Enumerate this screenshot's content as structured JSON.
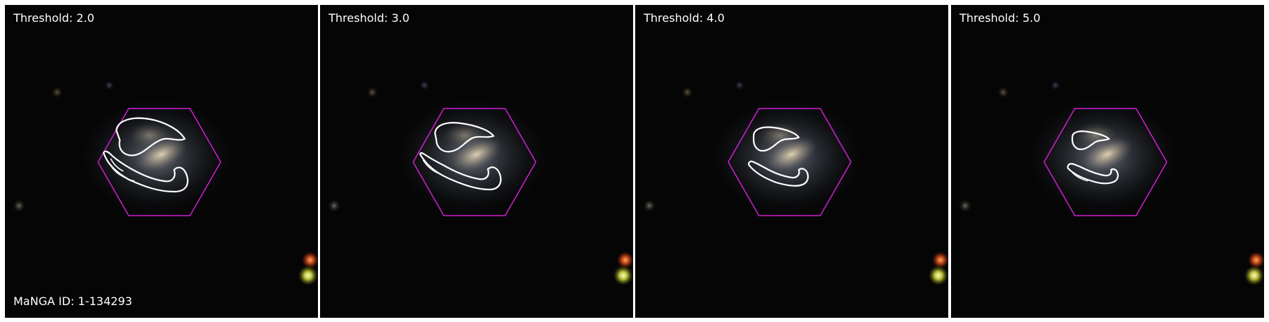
{
  "galaxy_id_text": "MaNGA ID: 1-134293",
  "colors": {
    "hexagon": "#d11fd1",
    "contour": "#ffffff",
    "background": "#050505"
  },
  "panels": [
    {
      "label": "Threshold: 2.0",
      "threshold": 2.0
    },
    {
      "label": "Threshold: 3.0",
      "threshold": 3.0
    },
    {
      "label": "Threshold: 4.0",
      "threshold": 4.0
    },
    {
      "label": "Threshold: 5.0",
      "threshold": 5.0
    }
  ]
}
